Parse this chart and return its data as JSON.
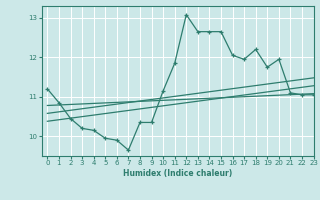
{
  "x_main": [
    0,
    1,
    2,
    3,
    4,
    5,
    6,
    7,
    8,
    9,
    10,
    11,
    12,
    13,
    14,
    15,
    16,
    17,
    18,
    19,
    20,
    21,
    22,
    23
  ],
  "y_main": [
    11.2,
    10.85,
    10.45,
    10.2,
    10.15,
    9.95,
    9.9,
    9.65,
    10.35,
    10.35,
    11.15,
    11.85,
    13.08,
    12.65,
    12.65,
    12.65,
    12.05,
    11.95,
    12.2,
    11.75,
    11.95,
    11.1,
    11.05,
    11.05
  ],
  "trend1_x": [
    0,
    23
  ],
  "trend1_y": [
    10.78,
    11.08
  ],
  "trend2_x": [
    0,
    23
  ],
  "trend2_y": [
    10.58,
    11.48
  ],
  "trend3_x": [
    0,
    23
  ],
  "trend3_y": [
    10.38,
    11.28
  ],
  "line_color": "#2e7d6e",
  "bg_color": "#cce8e8",
  "grid_color": "#ffffff",
  "xlabel": "Humidex (Indice chaleur)",
  "xlim": [
    -0.5,
    23
  ],
  "ylim": [
    9.5,
    13.3
  ],
  "yticks": [
    10,
    11,
    12,
    13
  ],
  "xticks": [
    0,
    1,
    2,
    3,
    4,
    5,
    6,
    7,
    8,
    9,
    10,
    11,
    12,
    13,
    14,
    15,
    16,
    17,
    18,
    19,
    20,
    21,
    22,
    23
  ]
}
